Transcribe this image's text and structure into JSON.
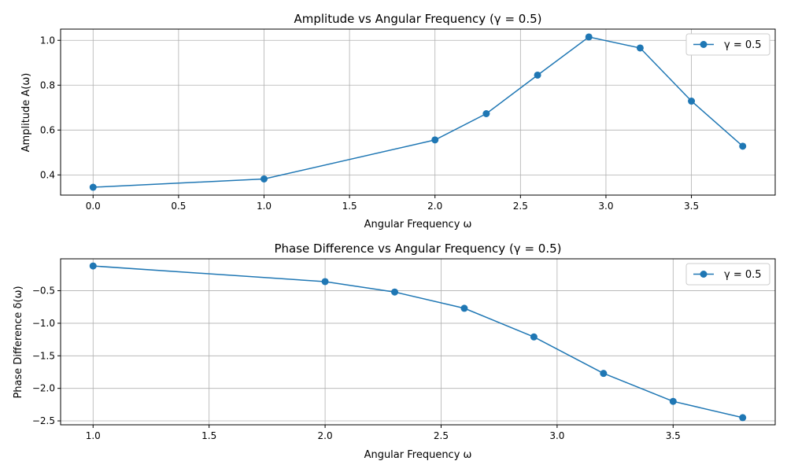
{
  "chart_data": [
    {
      "type": "line",
      "title": "Amplitude vs Angular Frequency (γ = 0.5)",
      "xlabel": "Angular Frequency ω",
      "ylabel": "Amplitude A(ω)",
      "xlim": [
        -0.19,
        3.99
      ],
      "ylim": [
        0.31,
        1.05
      ],
      "xticks": [
        0.0,
        0.5,
        1.0,
        1.5,
        2.0,
        2.5,
        3.0,
        3.5
      ],
      "xtick_labels": [
        "0.0",
        "0.5",
        "1.0",
        "1.5",
        "2.0",
        "2.5",
        "3.0",
        "3.5"
      ],
      "yticks": [
        0.4,
        0.6,
        0.8,
        1.0
      ],
      "ytick_labels": [
        "0.4",
        "0.6",
        "0.8",
        "1.0"
      ],
      "grid": true,
      "legend_position": "top-right",
      "series": [
        {
          "name": "γ = 0.5",
          "color": "#1f77b4",
          "marker": "circle",
          "x": [
            0.0,
            1.0,
            2.0,
            2.3,
            2.6,
            2.9,
            3.2,
            3.5,
            3.8
          ],
          "y": [
            0.345,
            0.382,
            0.556,
            0.673,
            0.845,
            1.015,
            0.966,
            0.729,
            0.528
          ]
        }
      ]
    },
    {
      "type": "line",
      "title": "Phase Difference vs Angular Frequency (γ = 0.5)",
      "xlabel": "Angular Frequency ω",
      "ylabel": "Phase Difference δ(ω)",
      "xlim": [
        0.86,
        3.94
      ],
      "ylim": [
        -2.56,
        -0.01
      ],
      "xticks": [
        1.0,
        1.5,
        2.0,
        2.5,
        3.0,
        3.5
      ],
      "xtick_labels": [
        "1.0",
        "1.5",
        "2.0",
        "2.5",
        "3.0",
        "3.5"
      ],
      "yticks": [
        -0.5,
        -1.0,
        -1.5,
        -2.0,
        -2.5
      ],
      "ytick_labels": [
        "−0.5",
        "−1.0",
        "−1.5",
        "−2.0",
        "−2.5"
      ],
      "grid": true,
      "legend_position": "top-right",
      "series": [
        {
          "name": "γ = 0.5",
          "color": "#1f77b4",
          "marker": "circle",
          "x": [
            1.0,
            2.0,
            2.3,
            2.6,
            2.9,
            3.2,
            3.5,
            3.8
          ],
          "y": [
            -0.12,
            -0.36,
            -0.52,
            -0.77,
            -1.21,
            -1.77,
            -2.2,
            -2.45
          ]
        }
      ]
    }
  ]
}
